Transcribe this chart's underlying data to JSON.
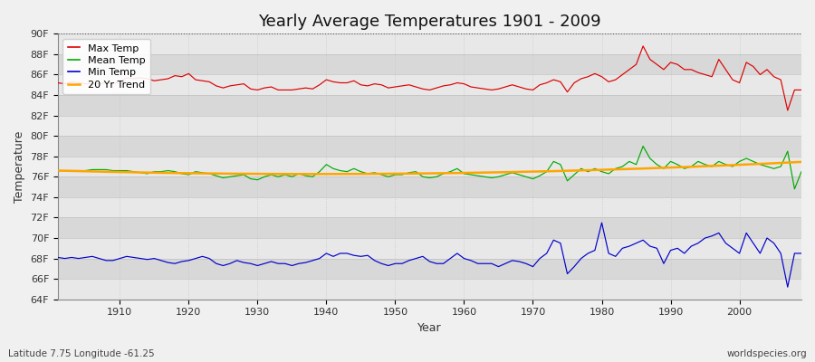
{
  "title": "Yearly Average Temperatures 1901 - 2009",
  "xlabel": "Year",
  "ylabel": "Temperature",
  "subtitle_lat_lon": "Latitude 7.75 Longitude -61.25",
  "watermark": "worldspecies.org",
  "years": [
    1901,
    1902,
    1903,
    1904,
    1905,
    1906,
    1907,
    1908,
    1909,
    1910,
    1911,
    1912,
    1913,
    1914,
    1915,
    1916,
    1917,
    1918,
    1919,
    1920,
    1921,
    1922,
    1923,
    1924,
    1925,
    1926,
    1927,
    1928,
    1929,
    1930,
    1931,
    1932,
    1933,
    1934,
    1935,
    1936,
    1937,
    1938,
    1939,
    1940,
    1941,
    1942,
    1943,
    1944,
    1945,
    1946,
    1947,
    1948,
    1949,
    1950,
    1951,
    1952,
    1953,
    1954,
    1955,
    1956,
    1957,
    1958,
    1959,
    1960,
    1961,
    1962,
    1963,
    1964,
    1965,
    1966,
    1967,
    1968,
    1969,
    1970,
    1971,
    1972,
    1973,
    1974,
    1975,
    1976,
    1977,
    1978,
    1979,
    1980,
    1981,
    1982,
    1983,
    1984,
    1985,
    1986,
    1987,
    1988,
    1989,
    1990,
    1991,
    1992,
    1993,
    1994,
    1995,
    1996,
    1997,
    1998,
    1999,
    2000,
    2001,
    2002,
    2003,
    2004,
    2005,
    2006,
    2007,
    2008,
    2009
  ],
  "max_temp": [
    85.2,
    85.1,
    85.3,
    85.2,
    85.1,
    85.1,
    85.1,
    85.2,
    85.1,
    85.3,
    85.7,
    85.6,
    85.7,
    85.6,
    85.4,
    85.5,
    85.6,
    85.9,
    85.8,
    86.1,
    85.5,
    85.4,
    85.3,
    84.9,
    84.7,
    84.9,
    85.0,
    85.1,
    84.6,
    84.5,
    84.7,
    84.8,
    84.5,
    84.5,
    84.5,
    84.6,
    84.7,
    84.6,
    85.0,
    85.5,
    85.3,
    85.2,
    85.2,
    85.4,
    85.0,
    84.9,
    85.1,
    85.0,
    84.7,
    84.8,
    84.9,
    85.0,
    84.8,
    84.6,
    84.5,
    84.7,
    84.9,
    85.0,
    85.2,
    85.1,
    84.8,
    84.7,
    84.6,
    84.5,
    84.6,
    84.8,
    85.0,
    84.8,
    84.6,
    84.5,
    85.0,
    85.2,
    85.5,
    85.3,
    84.3,
    85.2,
    85.6,
    85.8,
    86.1,
    85.8,
    85.3,
    85.5,
    86.0,
    86.5,
    87.0,
    88.8,
    87.5,
    87.0,
    86.5,
    87.2,
    87.0,
    86.5,
    86.5,
    86.2,
    86.0,
    85.8,
    87.5,
    86.5,
    85.5,
    85.2,
    87.2,
    86.8,
    86.0,
    86.5,
    85.8,
    85.5,
    82.5,
    84.5,
    84.5
  ],
  "mean_temp": [
    76.6,
    76.6,
    76.6,
    76.6,
    76.6,
    76.7,
    76.7,
    76.7,
    76.6,
    76.6,
    76.6,
    76.5,
    76.4,
    76.3,
    76.5,
    76.5,
    76.6,
    76.5,
    76.3,
    76.2,
    76.5,
    76.4,
    76.3,
    76.1,
    75.9,
    76.0,
    76.1,
    76.2,
    75.8,
    75.7,
    76.0,
    76.2,
    76.0,
    76.2,
    76.0,
    76.3,
    76.1,
    76.0,
    76.5,
    77.2,
    76.8,
    76.6,
    76.5,
    76.8,
    76.5,
    76.3,
    76.4,
    76.2,
    76.0,
    76.2,
    76.2,
    76.4,
    76.5,
    76.0,
    75.9,
    76.0,
    76.3,
    76.5,
    76.8,
    76.3,
    76.2,
    76.1,
    76.0,
    75.9,
    76.0,
    76.2,
    76.4,
    76.2,
    76.0,
    75.8,
    76.1,
    76.5,
    77.5,
    77.2,
    75.6,
    76.2,
    76.8,
    76.5,
    76.8,
    76.5,
    76.3,
    76.8,
    77.0,
    77.5,
    77.2,
    79.0,
    77.8,
    77.2,
    76.8,
    77.5,
    77.2,
    76.8,
    77.0,
    77.5,
    77.2,
    77.0,
    77.5,
    77.2,
    77.0,
    77.5,
    77.8,
    77.5,
    77.2,
    77.0,
    76.8,
    77.0,
    78.5,
    74.8,
    76.5
  ],
  "min_temp": [
    68.1,
    68.0,
    68.1,
    68.0,
    68.1,
    68.2,
    68.0,
    67.8,
    67.8,
    68.0,
    68.2,
    68.1,
    68.0,
    67.9,
    68.0,
    67.8,
    67.6,
    67.5,
    67.7,
    67.8,
    68.0,
    68.2,
    68.0,
    67.5,
    67.3,
    67.5,
    67.8,
    67.6,
    67.5,
    67.3,
    67.5,
    67.7,
    67.5,
    67.5,
    67.3,
    67.5,
    67.6,
    67.8,
    68.0,
    68.5,
    68.2,
    68.5,
    68.5,
    68.3,
    68.2,
    68.3,
    67.8,
    67.5,
    67.3,
    67.5,
    67.5,
    67.8,
    68.0,
    68.2,
    67.7,
    67.5,
    67.5,
    68.0,
    68.5,
    68.0,
    67.8,
    67.5,
    67.5,
    67.5,
    67.2,
    67.5,
    67.8,
    67.7,
    67.5,
    67.2,
    68.0,
    68.5,
    69.8,
    69.5,
    66.5,
    67.2,
    68.0,
    68.5,
    68.8,
    71.5,
    68.5,
    68.2,
    69.0,
    69.2,
    69.5,
    69.8,
    69.2,
    69.0,
    67.5,
    68.8,
    69.0,
    68.5,
    69.2,
    69.5,
    70.0,
    70.2,
    70.5,
    69.5,
    69.0,
    68.5,
    70.5,
    69.5,
    68.5,
    70.0,
    69.5,
    68.5,
    65.2,
    68.5,
    68.5
  ],
  "ylim": [
    64,
    90
  ],
  "yticks": [
    64,
    66,
    68,
    70,
    72,
    74,
    76,
    78,
    80,
    82,
    84,
    86,
    88,
    90
  ],
  "ytick_labels": [
    "64F",
    "66F",
    "68F",
    "70F",
    "72F",
    "74F",
    "76F",
    "78F",
    "80F",
    "82F",
    "84F",
    "86F",
    "88F",
    "90F"
  ],
  "xticks": [
    1910,
    1920,
    1930,
    1940,
    1950,
    1960,
    1970,
    1980,
    1990,
    2000
  ],
  "fig_bg_color": "#f0f0f0",
  "band_color_light": "#e8e8e8",
  "band_color_dark": "#d8d8d8",
  "grid_color_v": "#c8c8c8",
  "max_color": "#dd0000",
  "mean_color": "#00aa00",
  "min_color": "#0000cc",
  "trend_color": "#ffa500",
  "dotted_line_color": "#555555",
  "title_fontsize": 13,
  "axis_label_fontsize": 9,
  "tick_fontsize": 8,
  "legend_fontsize": 8
}
